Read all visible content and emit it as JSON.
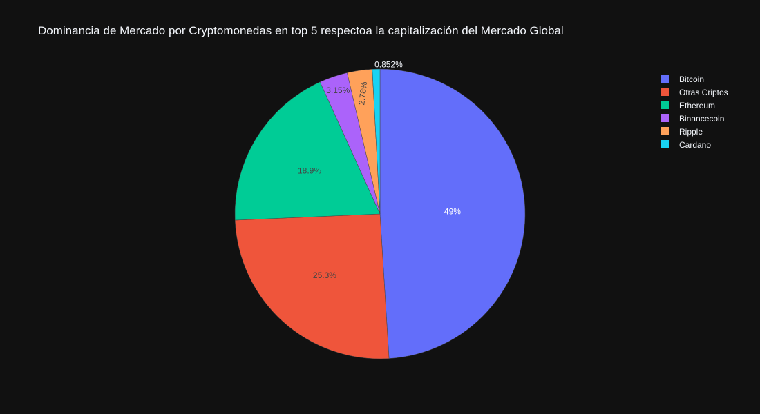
{
  "chart_data": {
    "type": "pie",
    "title": "Dominancia de Mercado por Cryptomonedas en top 5 respectoa  la capitalización del Mercado Global",
    "categories": [
      "Bitcoin",
      "Otras Criptos",
      "Ethereum",
      "Binancecoin",
      "Ripple",
      "Cardano"
    ],
    "values": [
      49,
      25.3,
      18.9,
      3.15,
      2.78,
      0.852
    ],
    "labels": [
      "49%",
      "25.3%",
      "18.9%",
      "3.15%",
      "2.78%",
      "0.852%"
    ],
    "colors": [
      "#636efa",
      "#EF553B",
      "#00cc96",
      "#ab63fa",
      "#FFA15A",
      "#19d3f3"
    ],
    "legend_position": "top-right",
    "background": "#111111"
  }
}
